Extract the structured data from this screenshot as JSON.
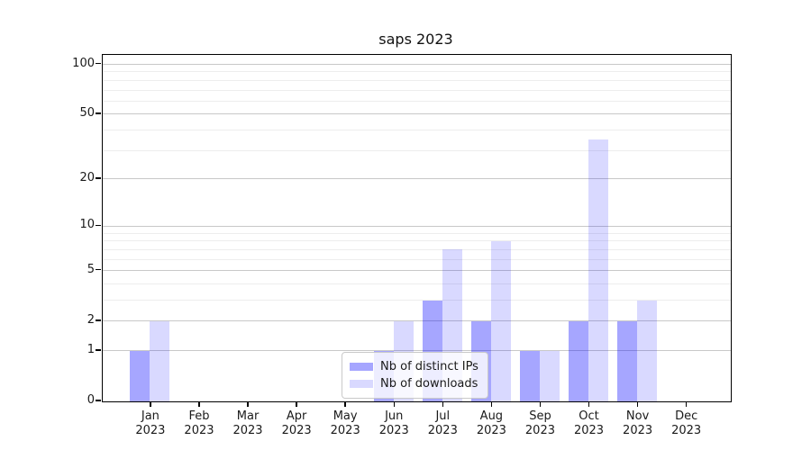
{
  "title": "saps 2023",
  "legend": {
    "items": [
      {
        "label": "Nb of distinct IPs",
        "color": "rgba(0,0,255,0.35)"
      },
      {
        "label": "Nb of downloads",
        "color": "rgba(0,0,255,0.15)"
      }
    ]
  },
  "chart_data": {
    "type": "bar",
    "title": "saps 2023",
    "year": "2023",
    "months": [
      "Jan",
      "Feb",
      "Mar",
      "Apr",
      "May",
      "Jun",
      "Jul",
      "Aug",
      "Sep",
      "Oct",
      "Nov",
      "Dec"
    ],
    "series": [
      {
        "name": "Nb of distinct IPs",
        "key": "ips",
        "color": "rgba(0,0,255,0.35)",
        "values": [
          1,
          0,
          0,
          0,
          0,
          1,
          3,
          2,
          1,
          2,
          2,
          0
        ]
      },
      {
        "name": "Nb of downloads",
        "key": "downloads",
        "color": "rgba(0,0,255,0.15)",
        "values": [
          2,
          0,
          0,
          0,
          0,
          2,
          7,
          8,
          1,
          35,
          3,
          0
        ]
      }
    ],
    "yscale": "log1p",
    "yticks": [
      0,
      1,
      2,
      5,
      10,
      20,
      50,
      100
    ],
    "minor_yticks": [
      3,
      4,
      6,
      7,
      8,
      9,
      30,
      40,
      60,
      70,
      80,
      90
    ],
    "ylim": [
      0,
      114
    ],
    "grid": true,
    "legend_position": "lower-center-inside",
    "colors": {
      "grid_major": "#c8c8c8",
      "grid_minor": "#ededed",
      "spine": "#000000"
    }
  }
}
